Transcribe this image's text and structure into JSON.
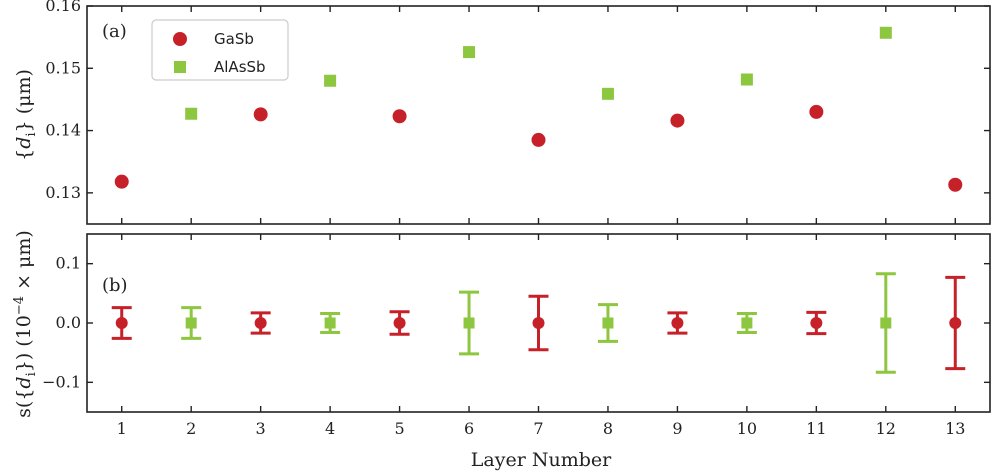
{
  "chart_data": [
    {
      "type": "scatter",
      "panel_label": "(a)",
      "ylabel_parts": [
        "{",
        "d",
        "i",
        "} (μm)"
      ],
      "xlabel": "",
      "xlim": [
        0.5,
        13.5
      ],
      "ylim": [
        0.125,
        0.16
      ],
      "yticks": [
        "0.13",
        "0.14",
        "0.15",
        "0.16"
      ],
      "ytick_values": [
        0.13,
        0.14,
        0.15,
        0.16
      ],
      "legend": {
        "position": "top-left",
        "entries": [
          "GaSb",
          "AlAsSb"
        ]
      },
      "series": [
        {
          "name": "GaSb",
          "color": "#c62128",
          "marker": "circle",
          "x": [
            1,
            3,
            5,
            7,
            9,
            11,
            13
          ],
          "y": [
            0.1318,
            0.1426,
            0.1423,
            0.1385,
            0.1416,
            0.143,
            0.1313
          ]
        },
        {
          "name": "AlAsSb",
          "color": "#8dc63f",
          "marker": "square",
          "x": [
            2,
            4,
            6,
            8,
            10,
            12
          ],
          "y": [
            0.1427,
            0.148,
            0.1526,
            0.1459,
            0.1482,
            0.1557
          ]
        }
      ]
    },
    {
      "type": "scatter",
      "panel_label": "(b)",
      "ylabel_parts": [
        "s({",
        "d",
        "i",
        "}) (10",
        "−4",
        " × μm)"
      ],
      "xlabel": "Layer Number",
      "xlim": [
        0.5,
        13.5
      ],
      "ylim": [
        -0.15,
        0.15
      ],
      "yticks": [
        "0.1",
        "0.0",
        "−0.1"
      ],
      "ytick_values": [
        0.1,
        0.0,
        -0.1
      ],
      "xticks": [
        "1",
        "2",
        "3",
        "4",
        "5",
        "6",
        "7",
        "8",
        "9",
        "10",
        "11",
        "12",
        "13"
      ],
      "xtick_values": [
        1,
        2,
        3,
        4,
        5,
        6,
        7,
        8,
        9,
        10,
        11,
        12,
        13
      ],
      "series": [
        {
          "name": "GaSb",
          "color": "#c62128",
          "marker": "circle",
          "x": [
            1,
            3,
            5,
            7,
            9,
            11,
            13
          ],
          "y": [
            0,
            0,
            0,
            0,
            0,
            0,
            0
          ],
          "err": [
            0.026,
            0.017,
            0.019,
            0.045,
            0.017,
            0.018,
            0.077
          ]
        },
        {
          "name": "AlAsSb",
          "color": "#8dc63f",
          "marker": "square",
          "x": [
            2,
            4,
            6,
            8,
            10,
            12
          ],
          "y": [
            0,
            0,
            0,
            0,
            0,
            0
          ],
          "err": [
            0.026,
            0.016,
            0.052,
            0.031,
            0.016,
            0.083
          ]
        }
      ]
    }
  ]
}
